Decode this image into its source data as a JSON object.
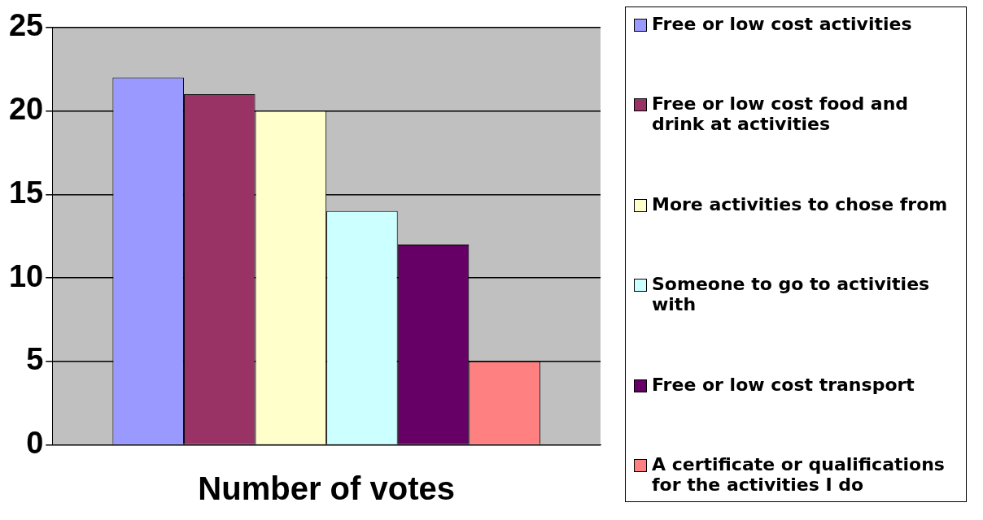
{
  "chart_data": {
    "type": "bar",
    "xlabel": "Number of votes",
    "categories": [
      null
    ],
    "ylim": [
      0,
      25
    ],
    "yticks": [
      0,
      5,
      10,
      15,
      20,
      25
    ],
    "grid": "y",
    "legend": "right",
    "series": [
      {
        "name": "Free or low cost activities",
        "color": "#9999ff",
        "values": [
          22
        ]
      },
      {
        "name": "Free or low cost food and drink at activities",
        "color": "#993366",
        "values": [
          21
        ]
      },
      {
        "name": "More activities to chose from",
        "color": "#ffffcc",
        "values": [
          20
        ]
      },
      {
        "name": "Someone to go to activities with",
        "color": "#ccffff",
        "values": [
          14
        ]
      },
      {
        "name": "Free or low cost transport",
        "color": "#660066",
        "values": [
          12
        ]
      },
      {
        "name": "A certificate or qualifications for the activities I do",
        "color": "#ff8080",
        "values": [
          5
        ]
      }
    ]
  }
}
